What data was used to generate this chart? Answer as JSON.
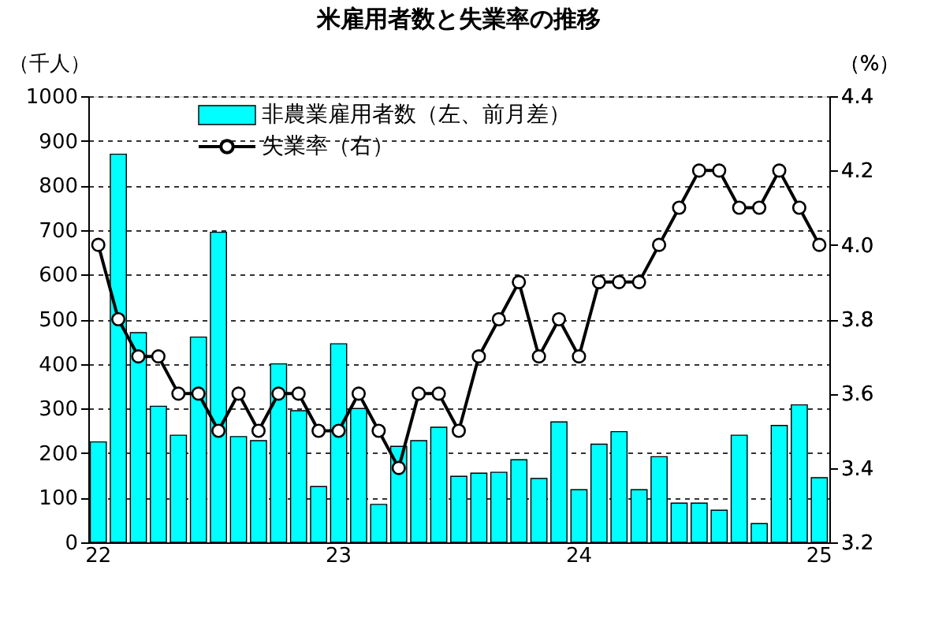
{
  "chart_data": {
    "type": "bar",
    "title": "米雇用者数と失業率の推移",
    "ylabel": "（千人）",
    "y2label": "（%）",
    "categories": [
      "22",
      null,
      null,
      null,
      null,
      null,
      null,
      null,
      null,
      null,
      null,
      null,
      "23",
      null,
      null,
      null,
      null,
      null,
      null,
      null,
      null,
      null,
      null,
      null,
      "24",
      null,
      null,
      null,
      null,
      null,
      null,
      null,
      null,
      null,
      null,
      null,
      "25"
    ],
    "series": [
      {
        "name": "非農業雇用者数（左、前月差）",
        "color": "#00ffff",
        "values": [
          225,
          870,
          470,
          305,
          240,
          460,
          695,
          237,
          228,
          400,
          295,
          125,
          445,
          300,
          85,
          215,
          228,
          258,
          148,
          155,
          157,
          185,
          143,
          270,
          118,
          220,
          248,
          118,
          192,
          88,
          88,
          72,
          240,
          42,
          262,
          308,
          145
        ]
      },
      {
        "name": "失業率（右）",
        "type": "line",
        "axis": "y2",
        "color": "#000000",
        "marker": "circle",
        "line_style": "solid",
        "values": [
          4.0,
          3.8,
          3.7,
          3.7,
          3.6,
          3.6,
          3.5,
          3.6,
          3.5,
          3.6,
          3.6,
          3.5,
          3.5,
          3.6,
          3.5,
          3.4,
          3.6,
          3.6,
          3.5,
          3.7,
          3.8,
          3.9,
          3.7,
          3.8,
          3.7,
          3.9,
          3.9,
          3.9,
          4.0,
          4.1,
          4.2,
          4.2,
          4.1,
          4.1,
          4.2,
          4.1,
          4.0
        ]
      }
    ],
    "ylim": [
      0,
      1000
    ],
    "yticks": [
      0,
      100,
      200,
      300,
      400,
      500,
      600,
      700,
      800,
      900,
      1000
    ],
    "y2lim": [
      3.2,
      4.4
    ],
    "y2ticks": [
      {
        "value": 3.2,
        "label": "3.2"
      },
      {
        "value": 3.4,
        "label": "3.4"
      },
      {
        "value": 3.6,
        "label": "3.6"
      },
      {
        "value": 3.8,
        "label": "3.8"
      },
      {
        "value": 4.0,
        "label": "4.0"
      },
      {
        "value": 4.2,
        "label": "4.2"
      },
      {
        "value": 4.4,
        "label": "4.4"
      }
    ],
    "grid": "y",
    "legend": "top left"
  }
}
